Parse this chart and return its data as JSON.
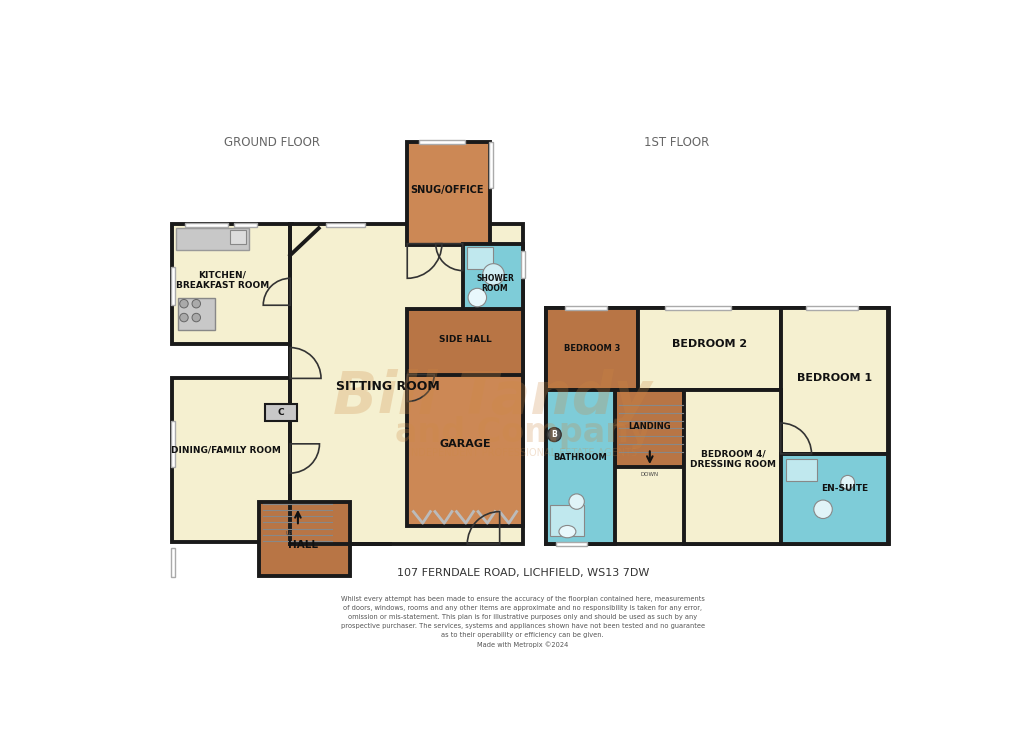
{
  "bg_color": "#ffffff",
  "wall_color": "#1a1a1a",
  "cream": "#f5f0d0",
  "orange": "#cc8855",
  "blue": "#7eccd8",
  "gray": "#c8c8c8",
  "dark_orange": "#b87545",
  "title": "107 FERNDALE ROAD, LICHFIELD, WS13 7DW",
  "ground_floor_label": "GROUND FLOOR",
  "first_floor_label": "1ST FLOOR",
  "disclaimer": "Whilst every attempt has been made to ensure the accuracy of the floorplan contained here, measurements\nof doors, windows, rooms and any other items are approximate and no responsibility is taken for any error,\nomission or mis-statement. This plan is for illustrative purposes only and should be used as such by any\nprospective purchaser. The services, systems and appliances shown have not been tested and no guarantee\nas to their operability or efficiency can be given.\nMade with Metropix ©2024"
}
